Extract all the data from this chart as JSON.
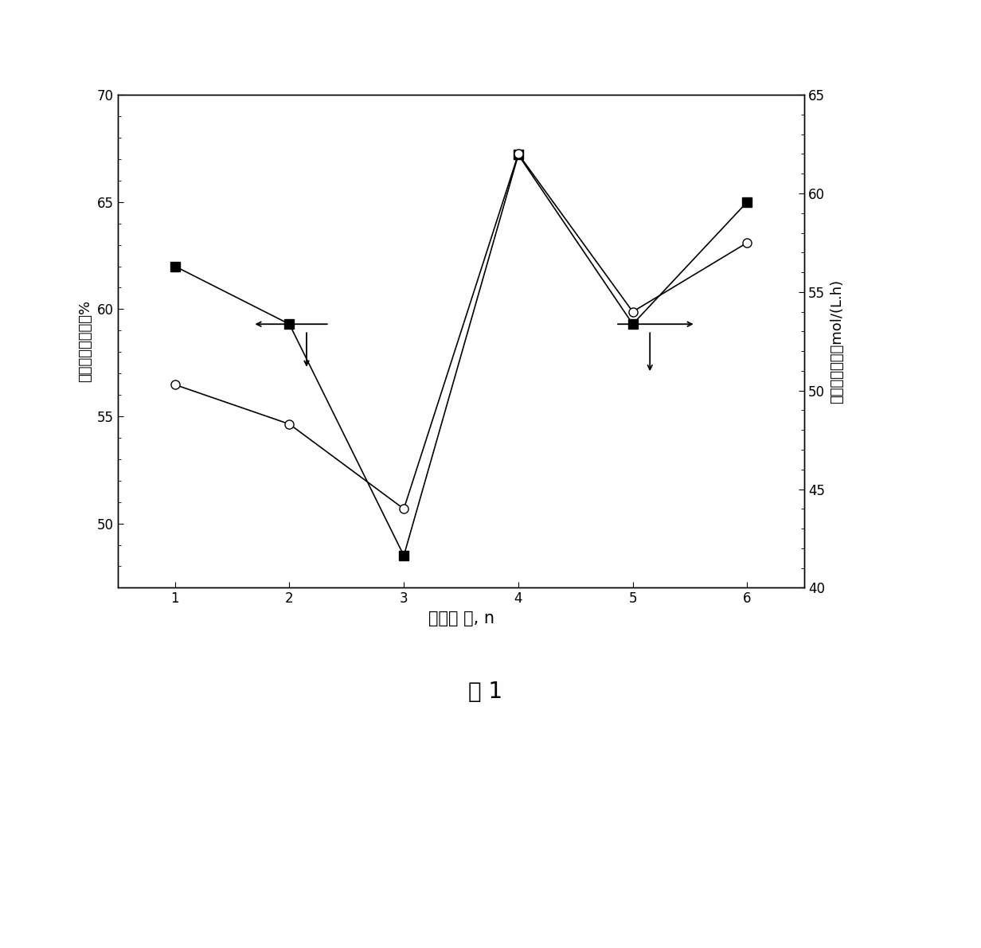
{
  "x": [
    1,
    2,
    3,
    4,
    5,
    6
  ],
  "y_left": [
    62.0,
    59.3,
    48.5,
    67.2,
    59.3,
    65.0
  ],
  "y_right_axis": [
    50.3,
    48.3,
    44.0,
    62.0,
    54.0,
    57.5
  ],
  "left_ylim": [
    47,
    70
  ],
  "right_ylim": [
    40,
    65
  ],
  "left_yticks": [
    50,
    55,
    60,
    65,
    70
  ],
  "right_yticks": [
    40,
    45,
    50,
    55,
    60,
    65
  ],
  "xlabel": "实验组 号, n",
  "ylabel_left": "醋酸甲酩转化率，%",
  "ylabel_right": "醋鄐时空收率，mol/(L.h)",
  "xticks": [
    1,
    2,
    3,
    4,
    5,
    6
  ],
  "figure_caption": "图 1",
  "figsize": [
    12.32,
    11.91
  ],
  "dpi": 100
}
